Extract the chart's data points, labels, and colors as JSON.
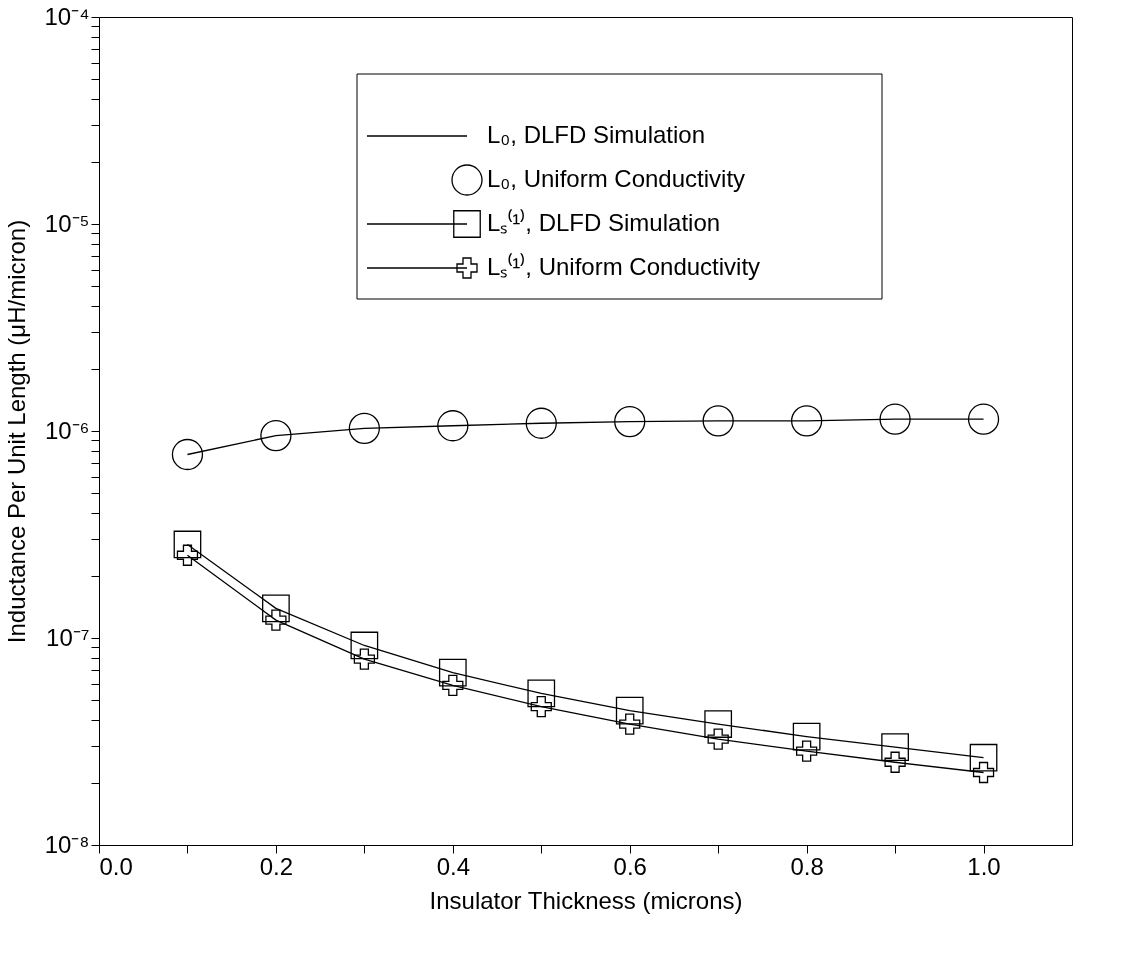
{
  "chart_data": {
    "type": "line",
    "xlabel": "Insulator Thickness (microns)",
    "ylabel": "Inductance Per Unit Length (μH/micron)",
    "x": [
      0.1,
      0.2,
      0.3,
      0.4,
      0.5,
      0.6,
      0.7,
      0.8,
      0.9,
      1.0
    ],
    "series": [
      {
        "name": "L₀, DLFD Simulation",
        "marker": "none",
        "line_style": "solid",
        "color": "#000000",
        "values": [
          7.7e-07,
          9.5e-07,
          1.03e-06,
          1.06e-06,
          1.09e-06,
          1.11e-06,
          1.12e-06,
          1.12e-06,
          1.14e-06,
          1.14e-06
        ]
      },
      {
        "name": "L₀, Uniform Conductivity",
        "type": "scatter",
        "marker": "circle",
        "color": "#000000",
        "values": [
          7.7e-07,
          9.5e-07,
          1.03e-06,
          1.06e-06,
          1.09e-06,
          1.11e-06,
          1.12e-06,
          1.12e-06,
          1.14e-06,
          1.14e-06
        ]
      },
      {
        "name": "Lₛ⁽¹⁾, DLFD Simulation",
        "marker": "square",
        "line_style": "solid",
        "color": "#000000",
        "values": [
          2.83e-07,
          1.39e-07,
          9.2e-08,
          6.8e-08,
          5.4e-08,
          4.46e-08,
          3.84e-08,
          3.34e-08,
          2.97e-08,
          2.64e-08
        ]
      },
      {
        "name": "Lₛ⁽¹⁾, Uniform Conductivity",
        "marker": "cross",
        "line_style": "solid",
        "color": "#000000",
        "values": [
          2.51e-07,
          1.22e-07,
          7.9e-08,
          5.9e-08,
          4.66e-08,
          3.84e-08,
          3.25e-08,
          2.84e-08,
          2.51e-08,
          2.24e-08
        ]
      }
    ],
    "log": "y",
    "grid": false,
    "legend": "top",
    "xlim": [
      0,
      1.1
    ],
    "xticks": [
      {
        "value": 0,
        "label": "0.0"
      },
      {
        "value": 0.1,
        "label": null
      },
      {
        "value": 0.2,
        "label": "0.2"
      },
      {
        "value": 0.3,
        "label": null
      },
      {
        "value": 0.4,
        "label": "0.4"
      },
      {
        "value": 0.5,
        "label": null
      },
      {
        "value": 0.6,
        "label": "0.6"
      },
      {
        "value": 0.7,
        "label": null
      },
      {
        "value": 0.8,
        "label": "0.8"
      },
      {
        "value": 0.9,
        "label": null
      },
      {
        "value": 1.0,
        "label": "1.0"
      }
    ],
    "ylim": [
      1e-08,
      0.0001
    ],
    "yticks": [
      {
        "value": 1e-08,
        "label": "10⁻⁸"
      },
      {
        "value": 2e-08,
        "label": null
      },
      {
        "value": 3e-08,
        "label": null
      },
      {
        "value": 4e-08,
        "label": null
      },
      {
        "value": 5e-08,
        "label": null
      },
      {
        "value": 6e-08,
        "label": null
      },
      {
        "value": 7e-08,
        "label": null
      },
      {
        "value": 8e-08,
        "label": null
      },
      {
        "value": 9e-08,
        "label": null
      },
      {
        "value": 1e-07,
        "label": "10⁻⁷"
      },
      {
        "value": 2e-07,
        "label": null
      },
      {
        "value": 3e-07,
        "label": null
      },
      {
        "value": 4e-07,
        "label": null
      },
      {
        "value": 5e-07,
        "label": null
      },
      {
        "value": 6e-07,
        "label": null
      },
      {
        "value": 7e-07,
        "label": null
      },
      {
        "value": 8e-07,
        "label": null
      },
      {
        "value": 9e-07,
        "label": null
      },
      {
        "value": 1e-06,
        "label": "10⁻⁶"
      },
      {
        "value": 2e-06,
        "label": null
      },
      {
        "value": 3e-06,
        "label": null
      },
      {
        "value": 4e-06,
        "label": null
      },
      {
        "value": 5e-06,
        "label": null
      },
      {
        "value": 6e-06,
        "label": null
      },
      {
        "value": 7e-06,
        "label": null
      },
      {
        "value": 8e-06,
        "label": null
      },
      {
        "value": 9e-06,
        "label": null
      },
      {
        "value": 1e-05,
        "label": "10⁻⁵"
      },
      {
        "value": 2e-05,
        "label": null
      },
      {
        "value": 3e-05,
        "label": null
      },
      {
        "value": 4e-05,
        "label": null
      },
      {
        "value": 5e-05,
        "label": null
      },
      {
        "value": 6e-05,
        "label": null
      },
      {
        "value": 7e-05,
        "label": null
      },
      {
        "value": 8e-05,
        "label": null
      },
      {
        "value": 9e-05,
        "label": null
      },
      {
        "value": 0.0001,
        "label": "10⁻⁴"
      }
    ]
  }
}
